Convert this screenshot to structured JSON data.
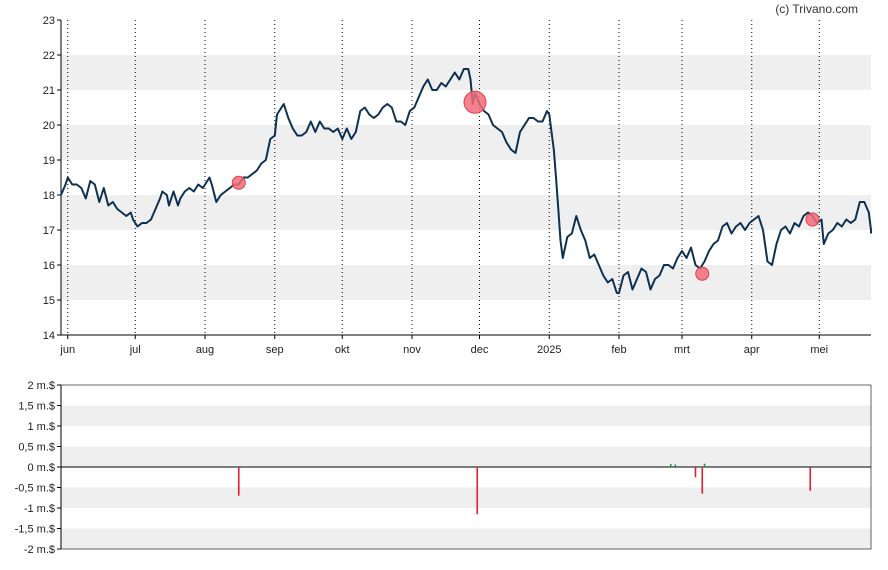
{
  "copyright": "(c) Trivano.com",
  "colors": {
    "price_line": "#0d3152",
    "band": "#efefef",
    "marker": "#f26b7a",
    "marker_stroke": "#e0404f",
    "volume_negative": "#e0202e",
    "volume_positive": "#2e8b3e",
    "axis": "#000000"
  },
  "chart_data": [
    {
      "type": "line",
      "title": "",
      "xlabel": "",
      "ylabel": "",
      "ylim": [
        14,
        23
      ],
      "yticks": [
        "14",
        "15",
        "16",
        "17",
        "18",
        "19",
        "20",
        "21",
        "22",
        "23"
      ],
      "months": [
        {
          "label": "jun",
          "day": 0
        },
        {
          "label": "jul",
          "day": 30
        },
        {
          "label": "aug",
          "day": 61
        },
        {
          "label": "sep",
          "day": 92
        },
        {
          "label": "okt",
          "day": 122
        },
        {
          "label": "nov",
          "day": 153
        },
        {
          "label": "dec",
          "day": 183
        },
        {
          "label": "2025",
          "day": 214
        },
        {
          "label": "feb",
          "day": 245
        },
        {
          "label": "mrt",
          "day": 273
        },
        {
          "label": "apr",
          "day": 304
        },
        {
          "label": "mei",
          "day": 334
        }
      ],
      "x_range_days": [
        -3,
        357
      ],
      "series": [
        {
          "points": [
            [
              -3,
              18.0
            ],
            [
              -1,
              18.3
            ],
            [
              0,
              18.5
            ],
            [
              2,
              18.3
            ],
            [
              4,
              18.3
            ],
            [
              6,
              18.2
            ],
            [
              8,
              17.9
            ],
            [
              10,
              18.4
            ],
            [
              12,
              18.3
            ],
            [
              14,
              17.8
            ],
            [
              16,
              18.2
            ],
            [
              18,
              17.7
            ],
            [
              20,
              17.8
            ],
            [
              22,
              17.6
            ],
            [
              24,
              17.5
            ],
            [
              26,
              17.4
            ],
            [
              28,
              17.5
            ],
            [
              29,
              17.3
            ],
            [
              31,
              17.1
            ],
            [
              33,
              17.2
            ],
            [
              35,
              17.2
            ],
            [
              37,
              17.3
            ],
            [
              39,
              17.6
            ],
            [
              41,
              17.9
            ],
            [
              42,
              18.1
            ],
            [
              44,
              18.0
            ],
            [
              45,
              17.7
            ],
            [
              47,
              18.1
            ],
            [
              49,
              17.7
            ],
            [
              50,
              17.9
            ],
            [
              52,
              18.1
            ],
            [
              54,
              18.2
            ],
            [
              56,
              18.1
            ],
            [
              58,
              18.3
            ],
            [
              60,
              18.2
            ],
            [
              62,
              18.4
            ],
            [
              63,
              18.5
            ],
            [
              64,
              18.3
            ],
            [
              66,
              17.8
            ],
            [
              68,
              18.0
            ],
            [
              70,
              18.1
            ],
            [
              72,
              18.2
            ],
            [
              74,
              18.3
            ],
            [
              76,
              18.3
            ],
            [
              78,
              18.5
            ],
            [
              80,
              18.5
            ],
            [
              82,
              18.6
            ],
            [
              84,
              18.7
            ],
            [
              86,
              18.9
            ],
            [
              88,
              19.0
            ],
            [
              90,
              19.6
            ],
            [
              92,
              19.7
            ],
            [
              93,
              20.3
            ],
            [
              95,
              20.5
            ],
            [
              96,
              20.6
            ],
            [
              98,
              20.2
            ],
            [
              100,
              19.9
            ],
            [
              102,
              19.7
            ],
            [
              104,
              19.7
            ],
            [
              106,
              19.8
            ],
            [
              108,
              20.1
            ],
            [
              110,
              19.8
            ],
            [
              112,
              20.1
            ],
            [
              114,
              19.9
            ],
            [
              116,
              19.9
            ],
            [
              118,
              19.8
            ],
            [
              120,
              19.9
            ],
            [
              122,
              19.6
            ],
            [
              124,
              19.9
            ],
            [
              126,
              19.6
            ],
            [
              128,
              19.8
            ],
            [
              130,
              20.4
            ],
            [
              132,
              20.5
            ],
            [
              134,
              20.3
            ],
            [
              136,
              20.2
            ],
            [
              138,
              20.3
            ],
            [
              140,
              20.5
            ],
            [
              142,
              20.6
            ],
            [
              144,
              20.5
            ],
            [
              146,
              20.1
            ],
            [
              148,
              20.1
            ],
            [
              150,
              20.0
            ],
            [
              152,
              20.4
            ],
            [
              154,
              20.5
            ],
            [
              156,
              20.8
            ],
            [
              158,
              21.1
            ],
            [
              160,
              21.3
            ],
            [
              162,
              21.0
            ],
            [
              164,
              21.0
            ],
            [
              166,
              21.2
            ],
            [
              168,
              21.1
            ],
            [
              170,
              21.3
            ],
            [
              172,
              21.5
            ],
            [
              174,
              21.3
            ],
            [
              176,
              21.6
            ],
            [
              178,
              21.6
            ],
            [
              179,
              21.3
            ],
            [
              180,
              20.6
            ],
            [
              181,
              20.9
            ],
            [
              183,
              20.6
            ],
            [
              185,
              20.4
            ],
            [
              187,
              20.3
            ],
            [
              189,
              20.0
            ],
            [
              191,
              19.9
            ],
            [
              193,
              19.8
            ],
            [
              195,
              19.5
            ],
            [
              197,
              19.3
            ],
            [
              199,
              19.2
            ],
            [
              201,
              19.8
            ],
            [
              203,
              20.0
            ],
            [
              205,
              20.2
            ],
            [
              207,
              20.2
            ],
            [
              209,
              20.1
            ],
            [
              211,
              20.1
            ],
            [
              213,
              20.4
            ],
            [
              214,
              20.3
            ],
            [
              215,
              19.8
            ],
            [
              216,
              19.3
            ],
            [
              217,
              18.5
            ],
            [
              218,
              17.6
            ],
            [
              219,
              16.7
            ],
            [
              220,
              16.2
            ],
            [
              222,
              16.8
            ],
            [
              224,
              16.9
            ],
            [
              226,
              17.4
            ],
            [
              228,
              17.0
            ],
            [
              230,
              16.7
            ],
            [
              232,
              16.2
            ],
            [
              234,
              16.3
            ],
            [
              236,
              16.0
            ],
            [
              238,
              15.7
            ],
            [
              240,
              15.5
            ],
            [
              242,
              15.6
            ],
            [
              244,
              15.2
            ],
            [
              245,
              15.2
            ],
            [
              247,
              15.7
            ],
            [
              249,
              15.8
            ],
            [
              251,
              15.3
            ],
            [
              253,
              15.6
            ],
            [
              255,
              15.9
            ],
            [
              257,
              15.8
            ],
            [
              259,
              15.3
            ],
            [
              261,
              15.6
            ],
            [
              263,
              15.7
            ],
            [
              265,
              16.0
            ],
            [
              267,
              16.0
            ],
            [
              269,
              15.9
            ],
            [
              271,
              16.2
            ],
            [
              273,
              16.4
            ],
            [
              275,
              16.2
            ],
            [
              277,
              16.5
            ],
            [
              279,
              16.0
            ],
            [
              281,
              15.9
            ],
            [
              283,
              16.1
            ],
            [
              285,
              16.4
            ],
            [
              287,
              16.6
            ],
            [
              289,
              16.7
            ],
            [
              291,
              17.1
            ],
            [
              293,
              17.2
            ],
            [
              295,
              16.9
            ],
            [
              297,
              17.1
            ],
            [
              299,
              17.2
            ],
            [
              301,
              17.0
            ],
            [
              303,
              17.2
            ],
            [
              305,
              17.3
            ],
            [
              307,
              17.4
            ],
            [
              309,
              17.0
            ],
            [
              311,
              16.1
            ],
            [
              313,
              16.0
            ],
            [
              315,
              16.6
            ],
            [
              317,
              17.0
            ],
            [
              319,
              17.1
            ],
            [
              321,
              16.9
            ],
            [
              323,
              17.2
            ],
            [
              325,
              17.1
            ],
            [
              327,
              17.4
            ],
            [
              329,
              17.5
            ],
            [
              331,
              17.4
            ],
            [
              333,
              17.2
            ],
            [
              335,
              17.3
            ],
            [
              336,
              16.6
            ],
            [
              338,
              16.9
            ],
            [
              340,
              17.0
            ],
            [
              342,
              17.2
            ],
            [
              344,
              17.1
            ],
            [
              346,
              17.3
            ],
            [
              348,
              17.2
            ],
            [
              350,
              17.3
            ],
            [
              352,
              17.8
            ],
            [
              354,
              17.8
            ],
            [
              356,
              17.5
            ],
            [
              358,
              17.0
            ],
            [
              360,
              17.0
            ],
            [
              362,
              16.9
            ]
          ]
        }
      ],
      "markers": [
        {
          "day": 76,
          "value": 18.35,
          "size": "small"
        },
        {
          "day": 181,
          "value": 20.65,
          "size": "large"
        },
        {
          "day": 282,
          "value": 15.75,
          "size": "small"
        },
        {
          "day": 331,
          "value": 17.3,
          "size": "small"
        }
      ]
    },
    {
      "type": "bar",
      "title": "",
      "ylim": [
        -2000000,
        2000000
      ],
      "yticks": [
        "2 m.$",
        "1,5 m.$",
        "1 m.$",
        "0,5 m.$",
        "0 m.$",
        "-0,5 m.$",
        "-1 m.$",
        "-1,5 m.$",
        "-2 m.$"
      ],
      "bars": [
        {
          "day": 76,
          "value": -700000
        },
        {
          "day": 182,
          "value": -1150000
        },
        {
          "day": 268,
          "value": 70000
        },
        {
          "day": 270,
          "value": 60000
        },
        {
          "day": 279,
          "value": -250000
        },
        {
          "day": 282,
          "value": -650000
        },
        {
          "day": 283,
          "value": 80000
        },
        {
          "day": 330,
          "value": -580000
        }
      ]
    }
  ]
}
